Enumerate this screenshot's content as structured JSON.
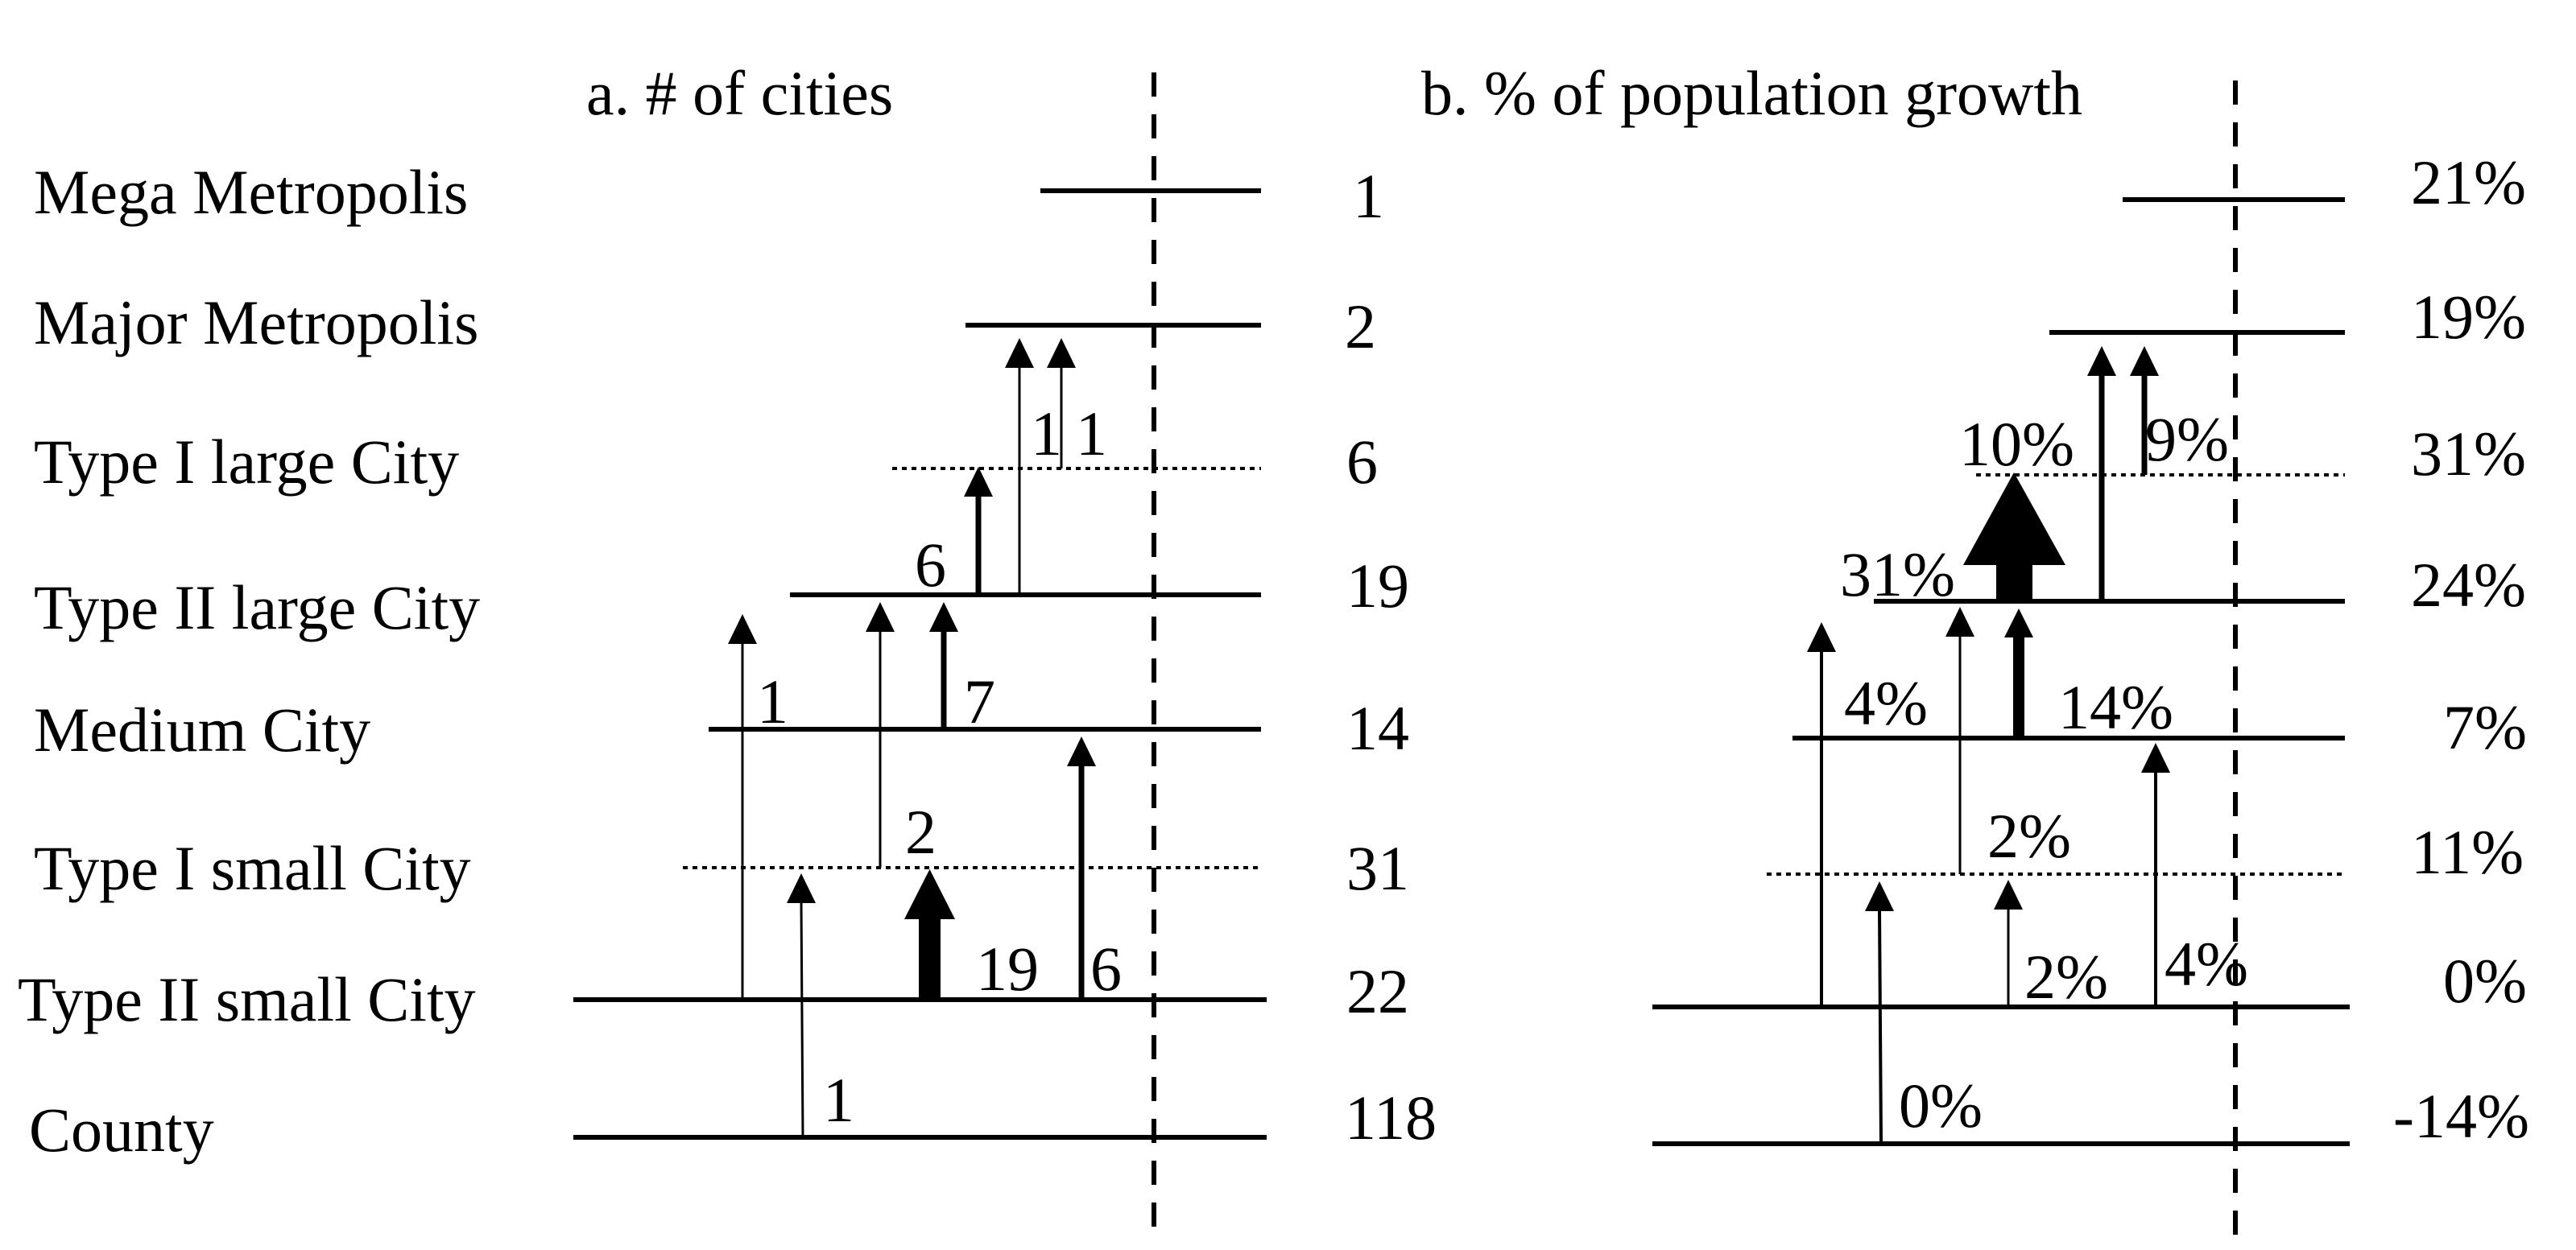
{
  "panel_a": {
    "title": "a. # of cities",
    "levels": [
      {
        "name": "Mega Metropolis",
        "count": "1"
      },
      {
        "name": "Major Metropolis",
        "count": "2"
      },
      {
        "name": "Type I large City",
        "count": "6"
      },
      {
        "name": "Type II large City",
        "count": "19"
      },
      {
        "name": "Medium City",
        "count": "14"
      },
      {
        "name": "Type I small City",
        "count": "31"
      },
      {
        "name": "Type II small City",
        "count": "22"
      },
      {
        "name": "County",
        "count": "118"
      }
    ],
    "arrow_labels": [
      "1",
      "1",
      "6",
      "1",
      "7",
      "2",
      "19",
      "6",
      "1"
    ]
  },
  "panel_b": {
    "title": "b. % of population growth",
    "values": [
      "21%",
      "19%",
      "31%",
      "24%",
      "7%",
      "11%",
      "0%",
      "-14%"
    ],
    "arrow_labels": [
      "10%",
      "9%",
      "31%",
      "4%",
      "14%",
      "2%",
      "2%",
      "4%",
      "0%"
    ]
  }
}
